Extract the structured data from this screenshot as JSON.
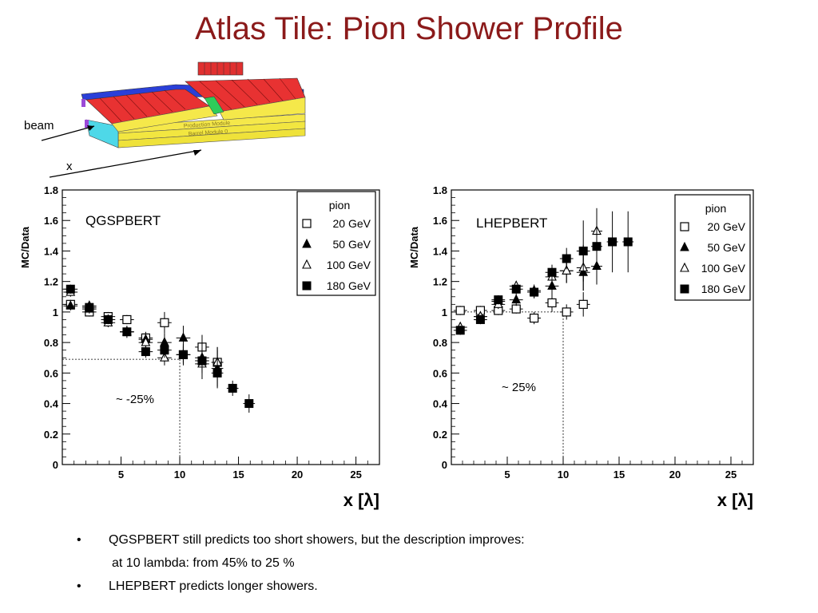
{
  "slide": {
    "title": "Atlas Tile: Pion Shower Profile",
    "colors": {
      "title": "#8b1a1a"
    }
  },
  "detector_figure": {
    "beam_label": "beam",
    "x_label": "x",
    "module_labels": [
      "Production Module",
      "Barrel Module 0"
    ]
  },
  "chart_data": [
    {
      "type": "scatter",
      "annotation": "QGSPBERT",
      "ylabel": "MC/Data",
      "xlabel": "x [λ]",
      "xlim": [
        0,
        27
      ],
      "ylim": [
        0,
        1.8
      ],
      "xticks": [
        5,
        10,
        15,
        20,
        25
      ],
      "yticks": [
        0,
        0.2,
        0.4,
        0.6,
        0.8,
        1,
        1.2,
        1.4,
        1.6,
        1.8
      ],
      "yticklabels": [
        "0",
        "0.2",
        "0.4",
        "0.6",
        "0.8",
        "1",
        "1.2",
        "1.4",
        "1.6",
        "1.8"
      ],
      "grid": false,
      "legend_title": "pion",
      "legend_position": "top-right",
      "series": [
        {
          "name": "20 GeV",
          "marker": "open-square",
          "points": [
            [
              0.7,
              1.05
            ],
            [
              2.3,
              1.0
            ],
            [
              3.9,
              0.97
            ],
            [
              5.5,
              0.95
            ],
            [
              7.1,
              0.83
            ],
            [
              8.7,
              0.93
            ],
            [
              10.3,
              0.72
            ],
            [
              11.9,
              0.77
            ],
            [
              13.2,
              0.67
            ]
          ]
        },
        {
          "name": "50 GeV",
          "marker": "filled-triangle",
          "points": [
            [
              0.7,
              1.04
            ],
            [
              2.3,
              1.04
            ],
            [
              3.9,
              0.95
            ],
            [
              5.5,
              0.87
            ],
            [
              7.1,
              0.82
            ],
            [
              8.7,
              0.8
            ],
            [
              10.3,
              0.83
            ],
            [
              11.9,
              0.7
            ],
            [
              13.2,
              0.63
            ]
          ]
        },
        {
          "name": "100 GeV",
          "marker": "open-triangle",
          "points": [
            [
              0.7,
              1.13
            ],
            [
              2.3,
              1.02
            ],
            [
              3.9,
              0.93
            ],
            [
              5.5,
              0.87
            ],
            [
              7.1,
              0.8
            ],
            [
              8.7,
              0.7
            ],
            [
              10.3,
              0.72
            ],
            [
              11.9,
              0.66
            ],
            [
              13.2,
              0.67
            ]
          ]
        },
        {
          "name": "180 GeV",
          "marker": "filled-square",
          "points": [
            [
              0.7,
              1.15
            ],
            [
              2.3,
              1.03
            ],
            [
              3.9,
              0.95
            ],
            [
              5.5,
              0.87
            ],
            [
              7.1,
              0.74
            ],
            [
              8.7,
              0.75
            ],
            [
              10.3,
              0.72
            ],
            [
              11.9,
              0.68
            ],
            [
              13.2,
              0.6
            ],
            [
              14.5,
              0.5
            ],
            [
              15.9,
              0.4
            ]
          ]
        }
      ],
      "errors": {
        "20 GeV": [
          [
            0.7,
            0.03,
            0.6
          ],
          [
            2.3,
            0.03,
            0.6
          ],
          [
            3.9,
            0.03,
            0.6
          ],
          [
            5.5,
            0.03,
            0.6
          ],
          [
            7.1,
            0.04,
            0.6
          ],
          [
            8.7,
            0.07,
            0.6
          ],
          [
            10.3,
            0.05,
            0.6
          ],
          [
            11.9,
            0.08,
            0.6
          ],
          [
            13.2,
            0.1,
            0.5
          ]
        ],
        "50 GeV": [
          [
            0.7,
            0.03,
            0.6
          ],
          [
            2.3,
            0.03,
            0.6
          ],
          [
            3.9,
            0.03,
            0.6
          ],
          [
            5.5,
            0.04,
            0.6
          ],
          [
            7.1,
            0.04,
            0.6
          ],
          [
            8.7,
            0.06,
            0.6
          ],
          [
            10.3,
            0.08,
            0.6
          ],
          [
            11.9,
            0.1,
            0.6
          ],
          [
            13.2,
            0.12,
            0.5
          ]
        ],
        "100 GeV": [
          [
            0.7,
            0.03,
            0.6
          ],
          [
            2.3,
            0.03,
            0.6
          ],
          [
            3.9,
            0.03,
            0.6
          ],
          [
            5.5,
            0.03,
            0.6
          ],
          [
            7.1,
            0.04,
            0.6
          ],
          [
            8.7,
            0.05,
            0.6
          ],
          [
            10.3,
            0.07,
            0.6
          ],
          [
            11.9,
            0.1,
            0.6
          ],
          [
            13.2,
            0.1,
            0.5
          ]
        ],
        "180 GeV": [
          [
            0.7,
            0.03,
            0.6
          ],
          [
            2.3,
            0.03,
            0.6
          ],
          [
            3.9,
            0.03,
            0.6
          ],
          [
            5.5,
            0.03,
            0.6
          ],
          [
            7.1,
            0.04,
            0.6
          ],
          [
            8.7,
            0.05,
            0.6
          ],
          [
            10.3,
            0.06,
            0.6
          ],
          [
            11.9,
            0.08,
            0.6
          ],
          [
            13.2,
            0.1,
            0.5
          ],
          [
            14.5,
            0.05,
            0.5
          ],
          [
            15.9,
            0.06,
            0.5
          ]
        ]
      },
      "reference_lines": {
        "y": 0.69,
        "x": 10
      },
      "note": "~ -25%"
    },
    {
      "type": "scatter",
      "annotation": "LHEPBERT",
      "ylabel": "MC/Data",
      "xlabel": "x [λ]",
      "xlim": [
        0,
        27
      ],
      "ylim": [
        0,
        1.8
      ],
      "xticks": [
        5,
        10,
        15,
        20,
        25
      ],
      "yticks": [
        0,
        0.2,
        0.4,
        0.6,
        0.8,
        1,
        1.2,
        1.4,
        1.6,
        1.8
      ],
      "yticklabels": [
        "0",
        "0.2",
        "0.4",
        "0.6",
        "0.8",
        "1",
        "1.2",
        "1.4",
        "1.6",
        "1.8"
      ],
      "grid": false,
      "legend_title": "pion",
      "legend_position": "top-right",
      "series": [
        {
          "name": "20 GeV",
          "marker": "open-square",
          "points": [
            [
              0.8,
              1.01
            ],
            [
              2.6,
              1.01
            ],
            [
              4.2,
              1.01
            ],
            [
              5.8,
              1.02
            ],
            [
              7.4,
              0.96
            ],
            [
              9.0,
              1.06
            ],
            [
              10.3,
              1.0
            ],
            [
              11.8,
              1.05
            ]
          ]
        },
        {
          "name": "50 GeV",
          "marker": "filled-triangle",
          "points": [
            [
              0.8,
              0.9
            ],
            [
              2.6,
              0.97
            ],
            [
              4.2,
              1.07
            ],
            [
              5.8,
              1.08
            ],
            [
              7.4,
              1.13
            ],
            [
              9.0,
              1.17
            ],
            [
              10.3,
              1.27
            ],
            [
              11.8,
              1.26
            ],
            [
              13.0,
              1.3
            ]
          ]
        },
        {
          "name": "100 GeV",
          "marker": "open-triangle",
          "points": [
            [
              0.8,
              0.9
            ],
            [
              2.6,
              0.97
            ],
            [
              4.2,
              1.05
            ],
            [
              5.8,
              1.17
            ],
            [
              7.4,
              1.14
            ],
            [
              9.0,
              1.23
            ],
            [
              10.3,
              1.27
            ],
            [
              11.8,
              1.29
            ],
            [
              13.0,
              1.53
            ]
          ]
        },
        {
          "name": "180 GeV",
          "marker": "filled-square",
          "points": [
            [
              0.8,
              0.88
            ],
            [
              2.6,
              0.95
            ],
            [
              4.2,
              1.08
            ],
            [
              5.8,
              1.15
            ],
            [
              7.4,
              1.13
            ],
            [
              9.0,
              1.26
            ],
            [
              10.3,
              1.35
            ],
            [
              11.8,
              1.4
            ],
            [
              13.0,
              1.43
            ],
            [
              14.4,
              1.46
            ],
            [
              15.8,
              1.46
            ]
          ]
        }
      ],
      "errors": {
        "20 GeV": [
          [
            0.8,
            0.03,
            0.6
          ],
          [
            2.6,
            0.03,
            0.6
          ],
          [
            4.2,
            0.03,
            0.6
          ],
          [
            5.8,
            0.03,
            0.6
          ],
          [
            7.4,
            0.04,
            0.6
          ],
          [
            9.0,
            0.06,
            0.6
          ],
          [
            10.3,
            0.05,
            0.6
          ],
          [
            11.8,
            0.08,
            0.6
          ]
        ],
        "50 GeV": [
          [
            0.8,
            0.03,
            0.6
          ],
          [
            2.6,
            0.03,
            0.6
          ],
          [
            4.2,
            0.03,
            0.6
          ],
          [
            5.8,
            0.04,
            0.6
          ],
          [
            7.4,
            0.04,
            0.6
          ],
          [
            9.0,
            0.06,
            0.6
          ],
          [
            10.3,
            0.08,
            0.6
          ],
          [
            11.8,
            0.12,
            0.6
          ],
          [
            13.0,
            0.12,
            0.5
          ]
        ],
        "100 GeV": [
          [
            0.8,
            0.03,
            0.6
          ],
          [
            2.6,
            0.03,
            0.6
          ],
          [
            4.2,
            0.03,
            0.6
          ],
          [
            5.8,
            0.03,
            0.6
          ],
          [
            7.4,
            0.04,
            0.6
          ],
          [
            9.0,
            0.06,
            0.6
          ],
          [
            10.3,
            0.08,
            0.6
          ],
          [
            11.8,
            0.15,
            0.6
          ],
          [
            13.0,
            0.15,
            0.5
          ]
        ],
        "180 GeV": [
          [
            0.8,
            0.03,
            0.6
          ],
          [
            2.6,
            0.03,
            0.6
          ],
          [
            4.2,
            0.03,
            0.6
          ],
          [
            5.8,
            0.03,
            0.6
          ],
          [
            7.4,
            0.04,
            0.6
          ],
          [
            9.0,
            0.05,
            0.6
          ],
          [
            10.3,
            0.07,
            0.6
          ],
          [
            11.8,
            0.2,
            0.6
          ],
          [
            13.0,
            0.25,
            0.5
          ],
          [
            14.4,
            0.2,
            0.5
          ],
          [
            15.8,
            0.2,
            0.5
          ]
        ]
      },
      "reference_lines": {
        "y": 1.0,
        "x": 10
      },
      "note": "~ 25%"
    }
  ],
  "bullets": [
    {
      "marker": "•",
      "text": "QGSPBERT still predicts too short showers, but the description improves:"
    },
    {
      "marker": "",
      "text": "at 10 lambda: from 45% to 25 %"
    },
    {
      "marker": "•",
      "text": "LHEPBERT predicts longer showers."
    }
  ]
}
